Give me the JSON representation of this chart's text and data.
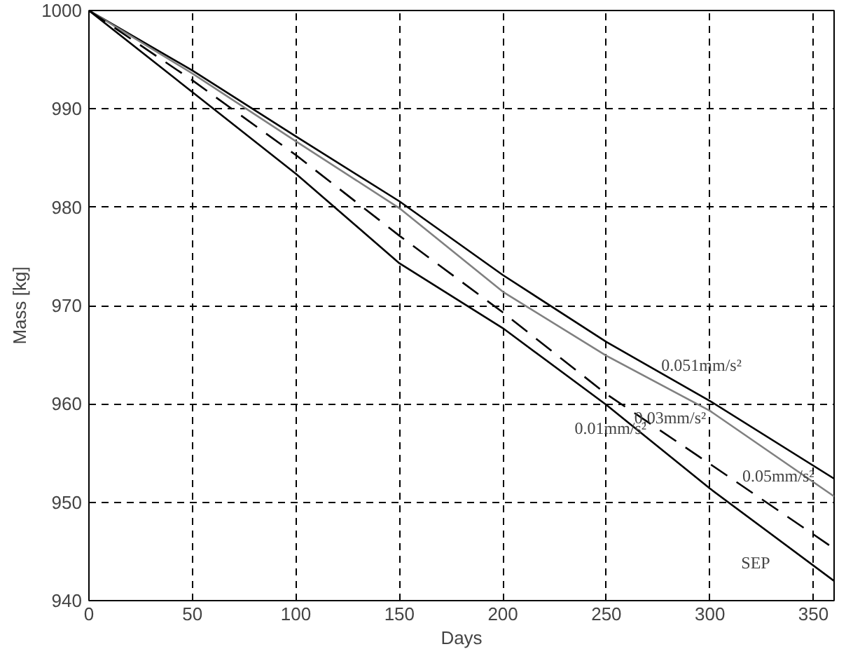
{
  "chart_data": {
    "type": "line",
    "xlabel": "Days",
    "ylabel": "Mass [kg]",
    "x": [
      0,
      50,
      100,
      150,
      200,
      250,
      300,
      360
    ],
    "series": [
      {
        "name": "0.051mm/s²",
        "color": "#000000",
        "values": [
          1000,
          993.9,
          987.2,
          980.6,
          973.1,
          966.3,
          960.3,
          952.4
        ]
      },
      {
        "name": "0.05mm/s²",
        "color": "#808080",
        "values": [
          1000,
          993.6,
          986.7,
          979.9,
          971.4,
          964.9,
          959.3,
          950.6
        ]
      },
      {
        "name": "0.03mm/s²",
        "color": "#000000",
        "line_style": "dashed",
        "values": [
          1000,
          992.9,
          985.3,
          977.1,
          969.3,
          961.0,
          953.9,
          945.3
        ]
      },
      {
        "name": "0.01mm/s²",
        "color": "#000000",
        "values": [
          1000,
          991.7,
          983.4,
          974.3,
          967.7,
          959.9,
          951.4,
          942.0
        ]
      }
    ],
    "xlim": [
      0,
      360
    ],
    "ylim": [
      940,
      1000
    ],
    "xticks": [
      0,
      50,
      100,
      150,
      200,
      250,
      300,
      350
    ],
    "yticks": [
      940,
      950,
      960,
      970,
      980,
      990,
      1000
    ],
    "grid": true,
    "legend": false,
    "line_style": "solid",
    "annotations": [
      "SEP"
    ]
  }
}
